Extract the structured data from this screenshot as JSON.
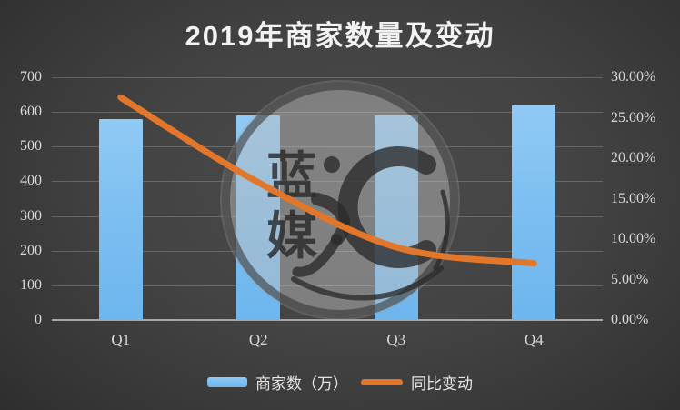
{
  "title": "2019年商家数量及变动",
  "watermark": {
    "char1": "蓝",
    "char2": "媒",
    "glyph": "汇"
  },
  "legend": {
    "items": [
      {
        "label": "商家数（万）",
        "type": "bar"
      },
      {
        "label": "同比变动",
        "type": "line"
      }
    ]
  },
  "colors": {
    "bar": "#7dbff1",
    "bar_light": "#90caf5",
    "bar_dark": "#6db6ee",
    "line": "#e2772c",
    "axis_text": "#d9d9d9",
    "title_text": "#f2f2f2",
    "grid": "rgba(255,255,255,0.20)",
    "baseline": "#a6a6a6",
    "background_center": "#4b4b4b",
    "background_edge": "#262626"
  },
  "chart_data": {
    "type": "bar",
    "combo": "bar+line",
    "title": "2019年商家数量及变动",
    "categories": [
      "Q1",
      "Q2",
      "Q3",
      "Q4"
    ],
    "series": [
      {
        "name": "商家数（万）",
        "type": "bar",
        "axis": "left",
        "values": [
          580,
          590,
          590,
          620
        ]
      },
      {
        "name": "同比变动",
        "type": "line",
        "axis": "right",
        "values": [
          27.5,
          17.0,
          9.0,
          7.0
        ],
        "unit": "%"
      }
    ],
    "left_axis": {
      "min": 0,
      "max": 700,
      "step": 100,
      "ticks": [
        "700",
        "600",
        "500",
        "400",
        "300",
        "200",
        "100",
        "0"
      ]
    },
    "right_axis": {
      "min": 0,
      "max": 30,
      "step": 5,
      "ticks": [
        "30.00%",
        "25.00%",
        "20.00%",
        "15.00%",
        "10.00%",
        "5.00%",
        "0.00%"
      ]
    },
    "grid": true,
    "legend_position": "bottom"
  }
}
